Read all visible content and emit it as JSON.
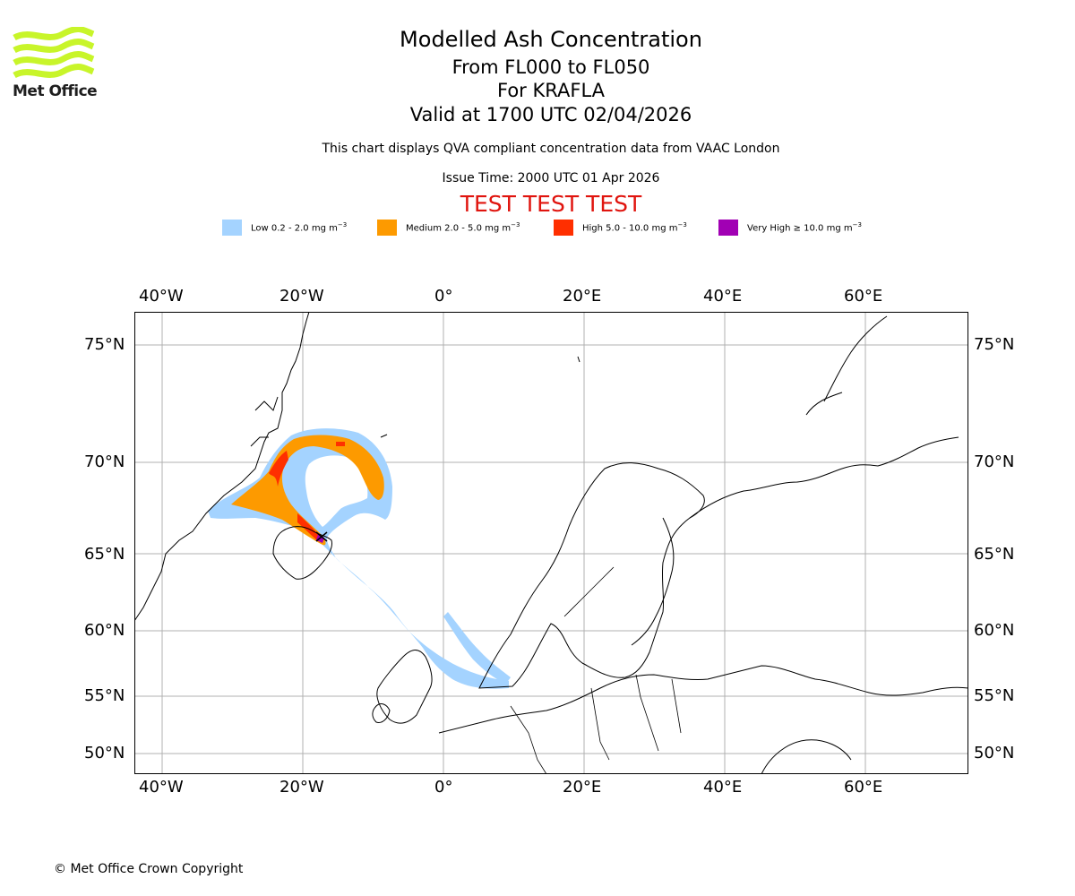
{
  "logo": {
    "text": "Met Office",
    "accent_color": "#c8f52a"
  },
  "titles": {
    "main": "Modelled Ash Concentration",
    "levels": "From FL000 to FL050",
    "volcano": "For KRAFLA",
    "valid": "Valid at 1700 UTC 02/04/2026"
  },
  "subtitle": "This chart displays QVA compliant concentration data from VAAC London",
  "issue_time": "Issue Time: 2000 UTC 01 Apr 2026",
  "test_banner": {
    "text": "TEST TEST TEST",
    "color": "#e0140e"
  },
  "legend": [
    {
      "label": "Low 0.2 - 2.0 mg m",
      "sup": "−3",
      "color": "#a4d3ff"
    },
    {
      "label": "Medium 2.0 - 5.0 mg m",
      "sup": "−3",
      "color": "#fd9a00"
    },
    {
      "label": "High 5.0 - 10.0 mg m",
      "sup": "−3",
      "color": "#ff2f00"
    },
    {
      "label": "Very High  ≥  10.0 mg m",
      "sup": "−3",
      "color": "#a100b4"
    }
  ],
  "map": {
    "lon_ticks": [
      "40°W",
      "20°W",
      "0°",
      "20°E",
      "40°E",
      "60°E"
    ],
    "lat_ticks": [
      "75°N",
      "70°N",
      "65°N",
      "60°N",
      "55°N",
      "50°N"
    ],
    "grid": true
  },
  "copyright": "© Met Office Crown Copyright"
}
